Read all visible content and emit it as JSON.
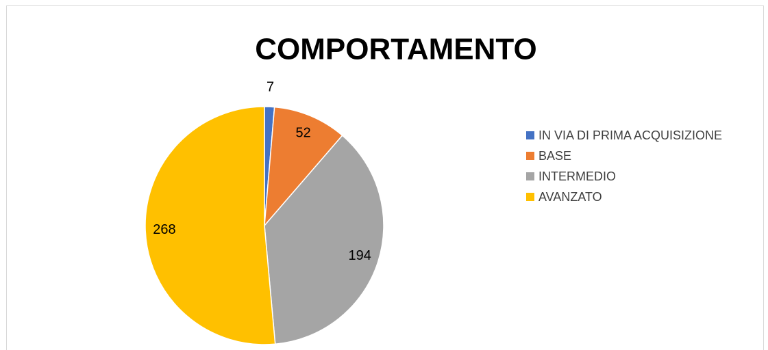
{
  "chart_data": {
    "type": "pie",
    "title": "COMPORTAMENTO",
    "categories": [
      "IN VIA DI PRIMA ACQUISIZIONE",
      "BASE",
      "INTERMEDIO",
      "AVANZATO"
    ],
    "values": [
      7,
      52,
      194,
      268
    ],
    "colors": [
      "#4472c4",
      "#ed7d31",
      "#a5a5a5",
      "#ffc000"
    ],
    "legend": "right"
  }
}
